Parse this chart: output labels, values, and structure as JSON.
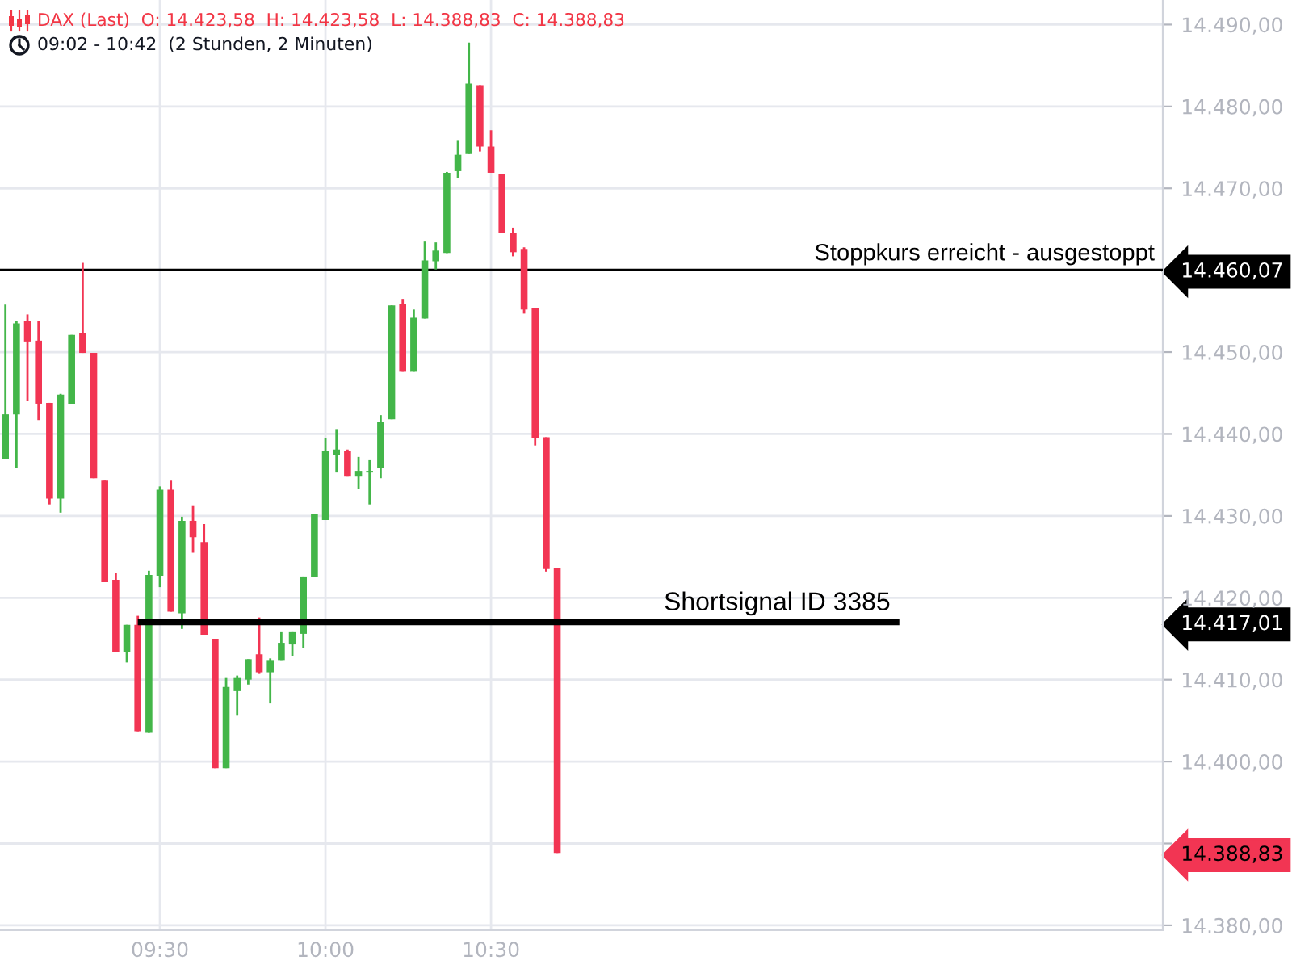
{
  "chart_data": {
    "type": "candlestick",
    "title": "DAX (Last)  O: 14.423,58  H: 14.423,58  L: 14.388,83  C: 14.388,83",
    "subtitle": "09:02 - 10:42  (2 Stunden, 2 Minuten)",
    "x": [
      9.0333,
      9.0667,
      9.1,
      9.1333,
      9.1667,
      9.2,
      9.2333,
      9.2667,
      9.3,
      9.3333,
      9.3667,
      9.4,
      9.4333,
      9.4667,
      9.5,
      9.5333,
      9.5667,
      9.6,
      9.6333,
      9.6667,
      9.7,
      9.7333,
      9.7667,
      9.8,
      9.8333,
      9.8667,
      9.9,
      9.9333,
      9.9667,
      10.0,
      10.0333,
      10.0667,
      10.1,
      10.1333,
      10.1667,
      10.2,
      10.2333,
      10.2667,
      10.3,
      10.3333,
      10.3667,
      10.4,
      10.4333,
      10.4667,
      10.5,
      10.5333,
      10.5667,
      10.6,
      10.6333,
      10.6667,
      10.7
    ],
    "ohlc": [
      [
        14436.9,
        14455.8,
        14436.9,
        14442.4
      ],
      [
        14442.4,
        14453.8,
        14435.9,
        14453.5
      ],
      [
        14453.8,
        14454.6,
        14444.0,
        14451.3
      ],
      [
        14451.4,
        14453.8,
        14441.7,
        14443.7
      ],
      [
        14443.8,
        14443.8,
        14431.4,
        14432.1
      ],
      [
        14432.1,
        14444.9,
        14430.4,
        14444.8
      ],
      [
        14443.7,
        14452.1,
        14443.7,
        14452.1
      ],
      [
        14452.3,
        14460.9,
        14449.9,
        14449.9
      ],
      [
        14449.9,
        14449.9,
        14434.6,
        14434.6
      ],
      [
        14434.3,
        14434.3,
        14421.9,
        14421.9
      ],
      [
        14422.2,
        14423.0,
        14413.4,
        14413.4
      ],
      [
        14413.4,
        14416.7,
        14412.1,
        14416.7
      ],
      [
        14416.7,
        14417.8,
        14403.7,
        14403.7
      ],
      [
        14403.5,
        14423.3,
        14403.5,
        14422.8
      ],
      [
        14422.7,
        14433.6,
        14421.3,
        14433.2
      ],
      [
        14433.2,
        14434.3,
        14418.3,
        14418.3
      ],
      [
        14418.1,
        14429.9,
        14416.2,
        14429.4
      ],
      [
        14429.4,
        14431.2,
        14425.5,
        14427.4
      ],
      [
        14426.8,
        14429.0,
        14415.5,
        14415.5
      ],
      [
        14415.0,
        14415.0,
        14399.2,
        14399.2
      ],
      [
        14399.2,
        14410.2,
        14399.2,
        14409.1
      ],
      [
        14408.6,
        14410.5,
        14405.6,
        14410.2
      ],
      [
        14410.0,
        14412.5,
        14409.4,
        14412.5
      ],
      [
        14413.1,
        14417.6,
        14410.7,
        14410.9
      ],
      [
        14410.9,
        14412.6,
        14407.1,
        14412.4
      ],
      [
        14412.4,
        14415.8,
        14412.4,
        14414.5
      ],
      [
        14414.3,
        14415.8,
        14412.9,
        14415.8
      ],
      [
        14415.6,
        14422.6,
        14413.9,
        14422.6
      ],
      [
        14422.5,
        14430.2,
        14422.5,
        14430.2
      ],
      [
        14429.5,
        14439.5,
        14429.5,
        14437.9
      ],
      [
        14437.4,
        14440.6,
        14435.3,
        14438.1
      ],
      [
        14437.9,
        14438.1,
        14434.8,
        14434.8
      ],
      [
        14434.8,
        14437.2,
        14433.3,
        14435.5
      ],
      [
        14435.3,
        14436.8,
        14431.4,
        14435.5
      ],
      [
        14435.9,
        14442.3,
        14434.6,
        14441.5
      ],
      [
        14441.8,
        14455.7,
        14441.8,
        14455.7
      ],
      [
        14455.9,
        14456.5,
        14447.6,
        14447.6
      ],
      [
        14447.6,
        14455.2,
        14447.6,
        14454.2
      ],
      [
        14454.1,
        14463.5,
        14454.1,
        14461.2
      ],
      [
        14461.1,
        14463.4,
        14460.1,
        14462.4
      ],
      [
        14462.1,
        14472.0,
        14462.1,
        14471.9
      ],
      [
        14472.1,
        14475.9,
        14471.3,
        14474.1
      ],
      [
        14474.2,
        14487.8,
        14474.2,
        14482.8
      ],
      [
        14482.6,
        14482.6,
        14474.5,
        14475.1
      ],
      [
        14475.1,
        14477.1,
        14471.9,
        14471.9
      ],
      [
        14471.8,
        14471.8,
        14464.5,
        14464.5
      ],
      [
        14464.6,
        14465.2,
        14461.7,
        14462.2
      ],
      [
        14462.6,
        14462.8,
        14454.7,
        14455.2
      ],
      [
        14455.4,
        14455.4,
        14438.6,
        14439.5
      ],
      [
        14439.6,
        14439.6,
        14423.2,
        14423.5
      ],
      [
        14423.58,
        14423.58,
        14388.83,
        14388.83
      ]
    ],
    "colors": [
      "#43b649",
      "#43b649",
      "#f23553",
      "#f23553",
      "#f23553",
      "#43b649",
      "#43b649",
      "#f23553",
      "#f23553",
      "#f23553",
      "#f23553",
      "#43b649",
      "#f23553",
      "#43b649",
      "#43b649",
      "#f23553",
      "#43b649",
      "#f23553",
      "#f23553",
      "#f23553",
      "#43b649",
      "#43b649",
      "#43b649",
      "#f23553",
      "#43b649",
      "#43b649",
      "#43b649",
      "#43b649",
      "#43b649",
      "#43b649",
      "#43b649",
      "#f23553",
      "#43b649",
      "#43b649",
      "#43b649",
      "#43b649",
      "#f23553",
      "#43b649",
      "#43b649",
      "#43b649",
      "#43b649",
      "#43b649",
      "#43b649",
      "#f23553",
      "#f23553",
      "#f23553",
      "#f23553",
      "#f23553",
      "#f23553",
      "#f23553",
      "#f23553"
    ],
    "series": [
      {
        "type": "line",
        "name": "Shortsignal ID 3385",
        "color": "#000000",
        "x": [
          9.4333,
          11.7333
        ],
        "values": [
          14417.01,
          14417.01
        ]
      }
    ],
    "ref_lines": [
      {
        "axis": "y",
        "value": 14460.07,
        "label": "Stoppkurs erreicht - ausgestoppt",
        "color": "#000000"
      }
    ],
    "xlim": [
      9.017,
      12.529
    ],
    "ylim": [
      14379.4,
      14493.0
    ],
    "xticks": [
      {
        "value": 9.5,
        "label": "09:30"
      },
      {
        "value": 10.0,
        "label": "10:00"
      },
      {
        "value": 10.5,
        "label": "10:30"
      }
    ],
    "yticks": [
      {
        "value": 14380,
        "label": "14.380,00"
      },
      {
        "value": 14388.83,
        "label": "14.388,83"
      },
      {
        "value": 14390,
        "label": null
      },
      {
        "value": 14400,
        "label": "14.400,00"
      },
      {
        "value": 14410,
        "label": "14.410,00"
      },
      {
        "value": 14417.01,
        "label": "14.417,01"
      },
      {
        "value": 14420,
        "label": "14.420,00"
      },
      {
        "value": 14430,
        "label": "14.430,00"
      },
      {
        "value": 14440,
        "label": "14.440,00"
      },
      {
        "value": 14450,
        "label": "14.450,00"
      },
      {
        "value": 14460,
        "label": null
      },
      {
        "value": 14460.07,
        "label": "14.460,07"
      },
      {
        "value": 14470,
        "label": "14.470,00"
      },
      {
        "value": 14480,
        "label": "14.480,00"
      },
      {
        "value": 14490,
        "label": "14.490,00"
      }
    ],
    "grid": true
  }
}
